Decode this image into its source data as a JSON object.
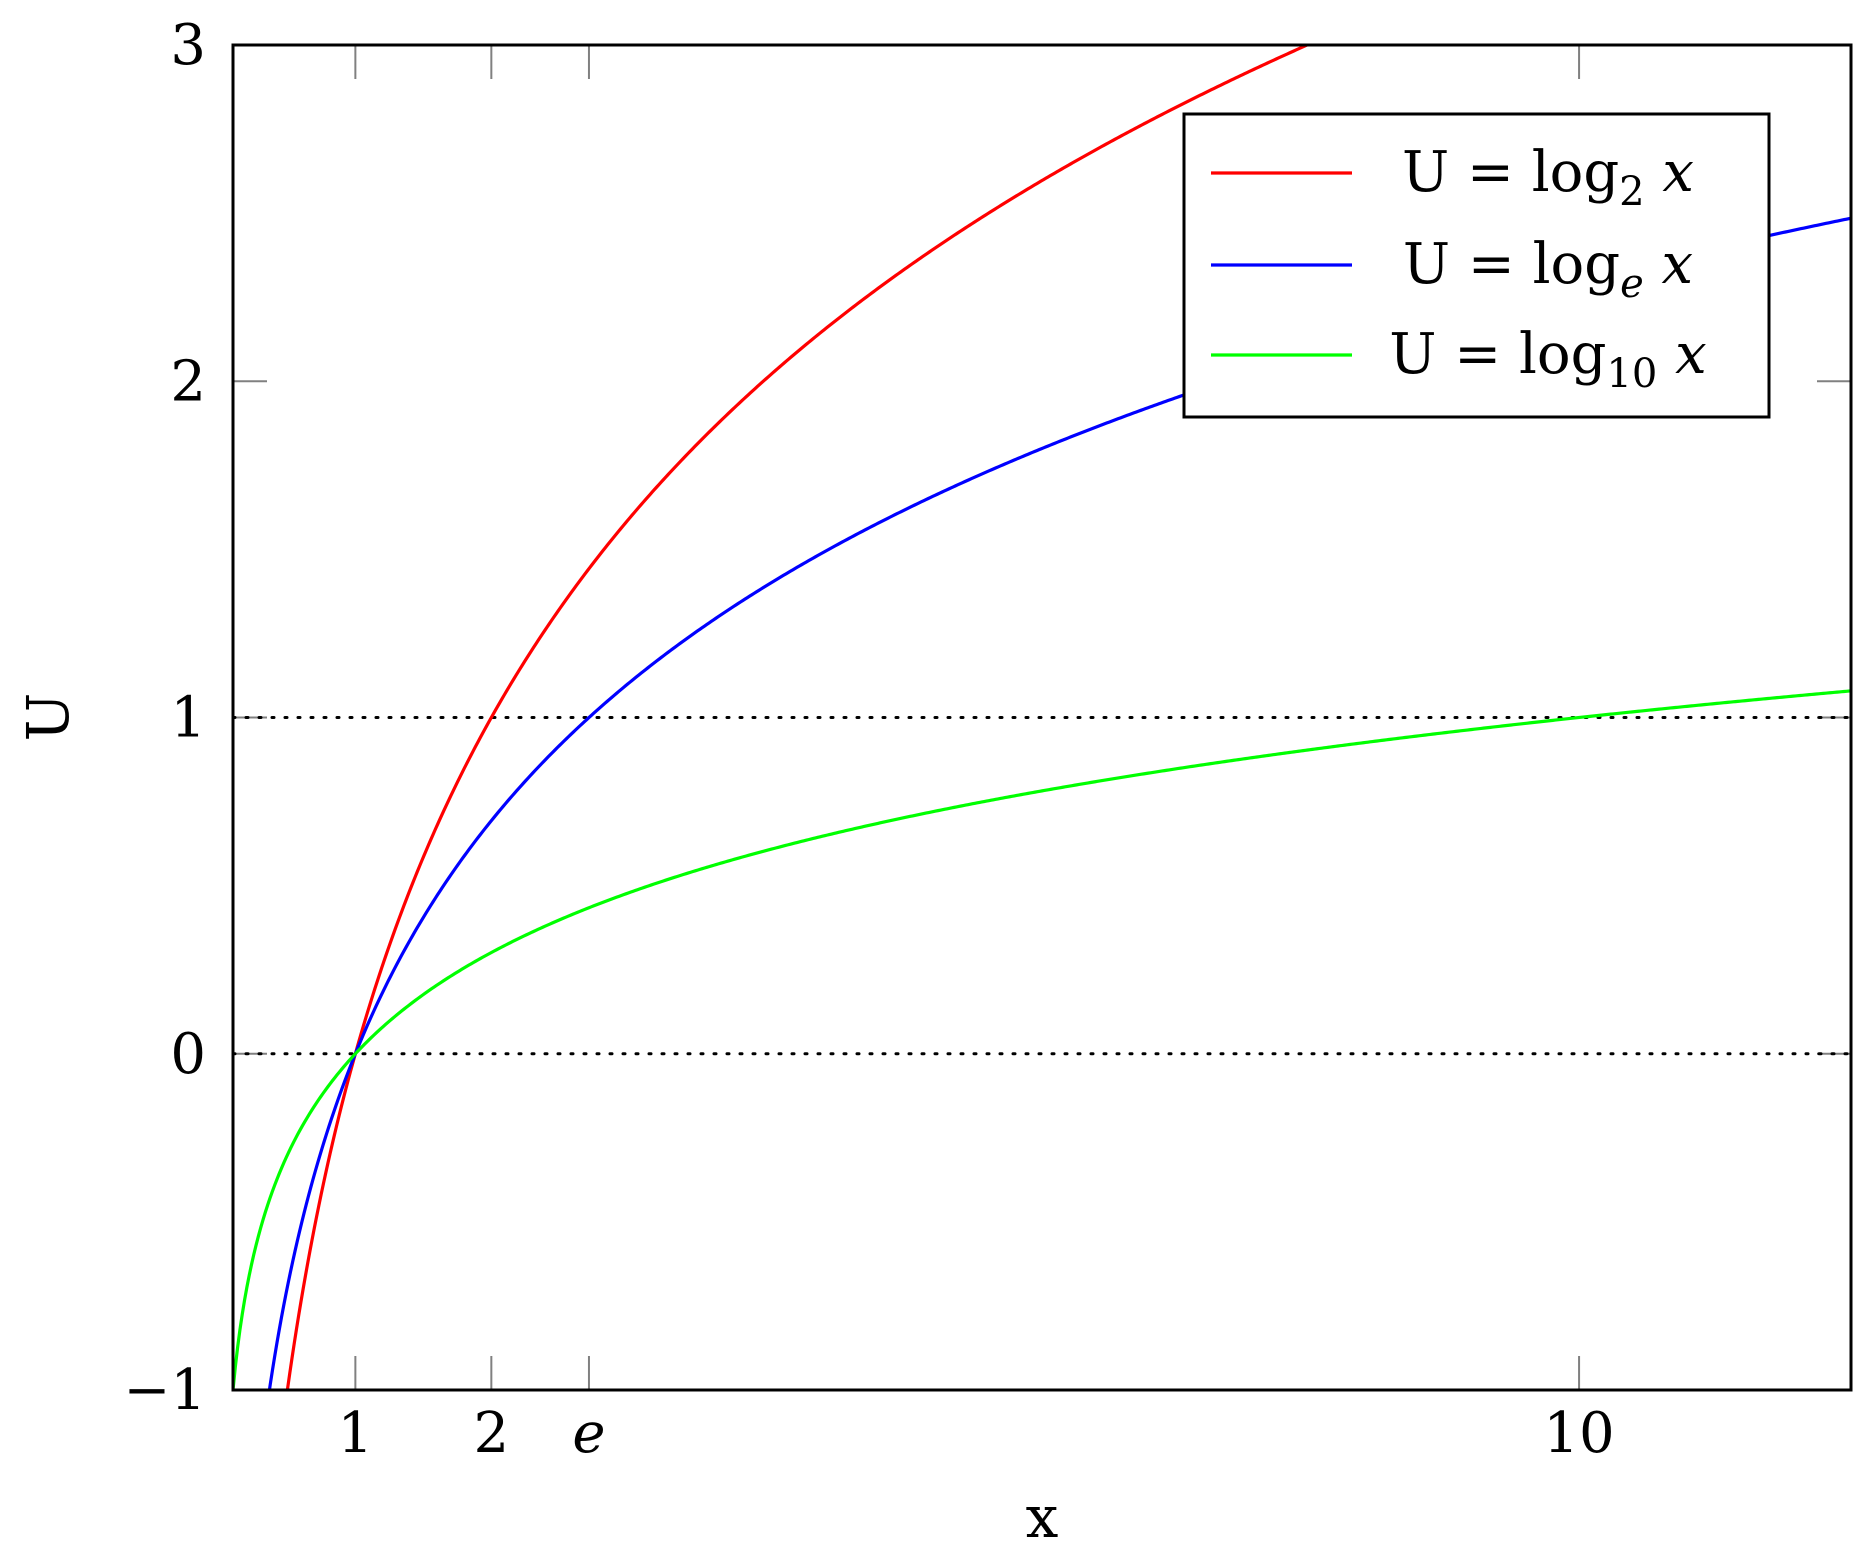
{
  "chart_data": {
    "type": "line",
    "title": "",
    "xlabel": "x",
    "ylabel": "U",
    "xlim": [
      0.1,
      12
    ],
    "ylim": [
      -1,
      3
    ],
    "x_ticks": [
      {
        "value": 1,
        "label": "1",
        "italic": false
      },
      {
        "value": 2,
        "label": "2",
        "italic": false
      },
      {
        "value": 2.718,
        "label": "e",
        "italic": true
      },
      {
        "value": 10,
        "label": "10",
        "italic": false
      }
    ],
    "y_ticks": [
      {
        "value": -1,
        "label": "−1"
      },
      {
        "value": 0,
        "label": "0"
      },
      {
        "value": 1,
        "label": "1"
      },
      {
        "value": 2,
        "label": "2"
      },
      {
        "value": 3,
        "label": "3"
      }
    ],
    "reference_lines": [
      {
        "y": 0,
        "style": "dotted",
        "color": "#000000"
      },
      {
        "y": 1,
        "style": "dotted",
        "color": "#000000"
      }
    ],
    "legend_position": "top-right",
    "series": [
      {
        "name": "U = log₂ x",
        "legend_main": "U = log",
        "legend_sub": "2",
        "legend_tail": " x",
        "color": "#ff0000",
        "function": "log2",
        "base": 2,
        "x": [
          0.5,
          0.75,
          1,
          1.5,
          2,
          2.718,
          3,
          4,
          5,
          6,
          7,
          8
        ],
        "y": [
          -1,
          -0.415,
          0,
          0.585,
          1,
          1.443,
          1.585,
          2,
          2.322,
          2.585,
          2.807,
          3
        ]
      },
      {
        "name": "U = logₑ x",
        "legend_main": "U = log",
        "legend_sub": "e",
        "legend_tail": " x",
        "color": "#0000ff",
        "function": "ln",
        "base": 2.718281828,
        "x": [
          0.368,
          0.5,
          0.75,
          1,
          1.5,
          2,
          2.718,
          4,
          6,
          8,
          10,
          12
        ],
        "y": [
          -1,
          -0.693,
          -0.288,
          0,
          0.405,
          0.693,
          1,
          1.386,
          1.792,
          2.079,
          2.303,
          2.485
        ]
      },
      {
        "name": "U = log₁₀ x",
        "legend_main": "U = log",
        "legend_sub": "10",
        "legend_tail": " x",
        "color": "#00ff00",
        "function": "log10",
        "base": 10,
        "x": [
          0.1,
          0.25,
          0.5,
          1,
          2,
          2.718,
          4,
          6,
          8,
          10,
          12
        ],
        "y": [
          -1,
          -0.602,
          -0.301,
          0,
          0.301,
          0.434,
          0.602,
          0.778,
          0.903,
          1,
          1.079
        ]
      }
    ]
  }
}
